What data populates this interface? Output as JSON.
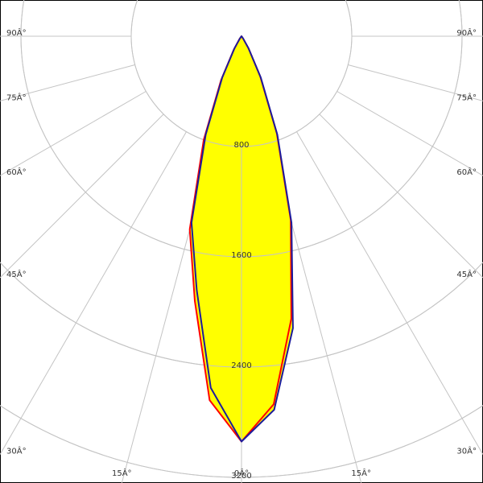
{
  "chart_data": {
    "type": "polar",
    "angles": [
      -40,
      -35,
      -30,
      -25,
      -20,
      -15,
      -10,
      -5,
      0,
      5,
      10,
      15,
      20,
      25,
      30,
      35,
      40
    ],
    "series": [
      {
        "color": "#ff0000",
        "values": [
          0,
          25,
          110,
          350,
          800,
          1450,
          1950,
          2650,
          2940,
          2680,
          2080,
          1380,
          750,
          320,
          100,
          20,
          0
        ]
      },
      {
        "color": "#1c1c9c",
        "values": [
          0,
          20,
          100,
          330,
          760,
          1400,
          1870,
          2560,
          2940,
          2720,
          2150,
          1400,
          760,
          330,
          100,
          20,
          0
        ]
      }
    ],
    "fill_color": "#ffff00",
    "rlim": [
      0,
      3200
    ],
    "rticks": [
      800,
      1600,
      2400,
      3200
    ],
    "angle_ticks": [
      {
        "value": -90,
        "label": "90Â°"
      },
      {
        "value": -75,
        "label": "75Â°"
      },
      {
        "value": -60,
        "label": "60Â°"
      },
      {
        "value": -45,
        "label": "45Â°"
      },
      {
        "value": -30,
        "label": "30Â°"
      },
      {
        "value": -15,
        "label": "15Â°"
      },
      {
        "value": 0,
        "label": "0Â°"
      },
      {
        "value": 15,
        "label": "15Â°"
      },
      {
        "value": 30,
        "label": "30Â°"
      },
      {
        "value": 45,
        "label": "45Â°"
      },
      {
        "value": 60,
        "label": "60Â°"
      },
      {
        "value": 75,
        "label": "75Â°"
      },
      {
        "value": 90,
        "label": "90Â°"
      }
    ],
    "grid": true
  }
}
